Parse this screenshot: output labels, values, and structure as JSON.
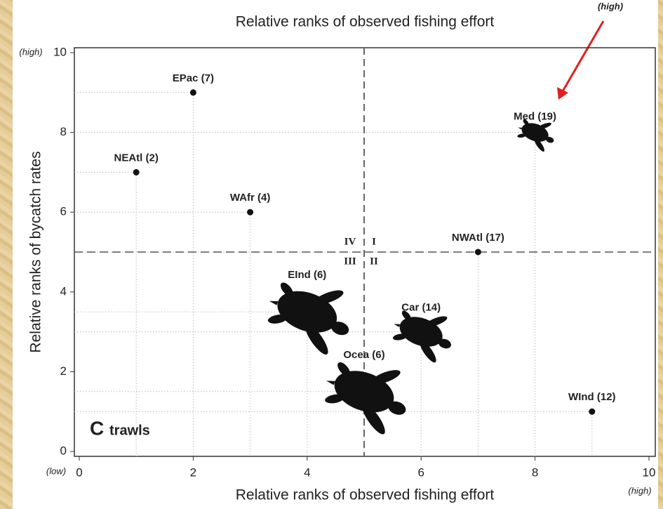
{
  "chart_data": {
    "type": "scatter",
    "title": "Relative ranks of observed fishing effort",
    "top_note": "(high)",
    "x_label": "Relative ranks of observed fishing effort",
    "y_label": "Relative ranks of bycatch rates",
    "x_low_label": "(low)",
    "x_high_label": "(high)",
    "y_high_label": "(high)",
    "panel_letter": "C",
    "panel_name": "trawls",
    "xlim": [
      0,
      10
    ],
    "ylim": [
      0,
      10
    ],
    "xticks": [
      0,
      2,
      4,
      6,
      8,
      10
    ],
    "yticks": [
      0,
      2,
      4,
      6,
      8,
      10
    ],
    "divider_x": 5,
    "divider_y": 5,
    "quadrant_labels": [
      "I",
      "II",
      "III",
      "IV"
    ],
    "points": [
      {
        "label": "EPac (7)",
        "x": 2,
        "y": 9,
        "color": "#d9412b",
        "marker": "dot"
      },
      {
        "label": "NEAtl (2)",
        "x": 1,
        "y": 7,
        "color": "#4a5bb0",
        "marker": "dot"
      },
      {
        "label": "WAfr (4)",
        "x": 3,
        "y": 6,
        "color": "#4a5bb0",
        "marker": "dot"
      },
      {
        "label": "NWAtl (17)",
        "x": 7,
        "y": 5,
        "color": "#d9412b",
        "marker": "dot"
      },
      {
        "label": "Med (19)",
        "x": 8,
        "y": 8,
        "color": "#d9412b",
        "marker": "turtle-small"
      },
      {
        "label": "EInd (6)",
        "x": 4,
        "y": 3.5,
        "color": "#111111",
        "marker": "turtle-large"
      },
      {
        "label": "Car (14)",
        "x": 6,
        "y": 3,
        "color": "#111111",
        "marker": "turtle-medium"
      },
      {
        "label": "Ocea (6)",
        "x": 5,
        "y": 1.5,
        "color": "#111111",
        "marker": "turtle-large"
      },
      {
        "label": "WInd (12)",
        "x": 9,
        "y": 1,
        "color": "#111111",
        "marker": "dot"
      }
    ]
  }
}
